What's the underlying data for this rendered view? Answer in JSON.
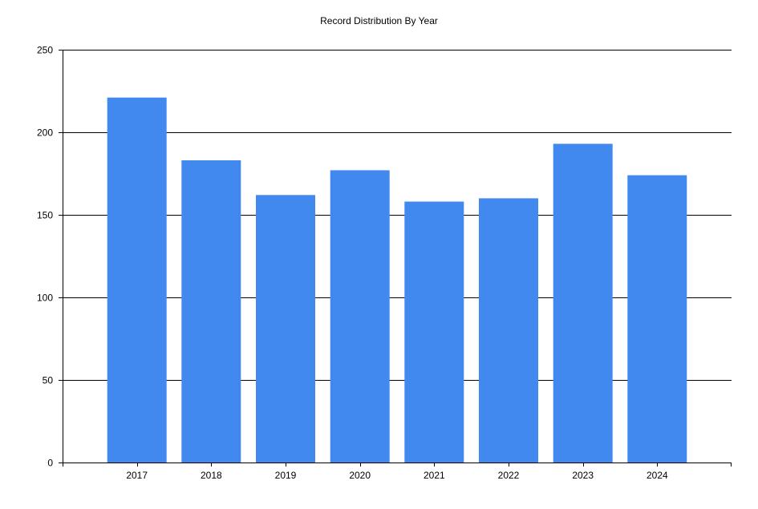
{
  "chart_data": {
    "type": "bar",
    "title": "Record Distribution By Year",
    "xlabel": "",
    "ylabel": "",
    "categories": [
      "2017",
      "2018",
      "2019",
      "2020",
      "2021",
      "2022",
      "2023",
      "2024"
    ],
    "values": [
      221,
      183,
      162,
      177,
      158,
      160,
      193,
      174
    ],
    "ylim": [
      0,
      250
    ],
    "yticks": [
      "0",
      "50",
      "100",
      "150",
      "200",
      "250"
    ],
    "grid": "horizontal",
    "legend": "none",
    "bar_color": "#4189EE",
    "grid_color": "#000000"
  }
}
